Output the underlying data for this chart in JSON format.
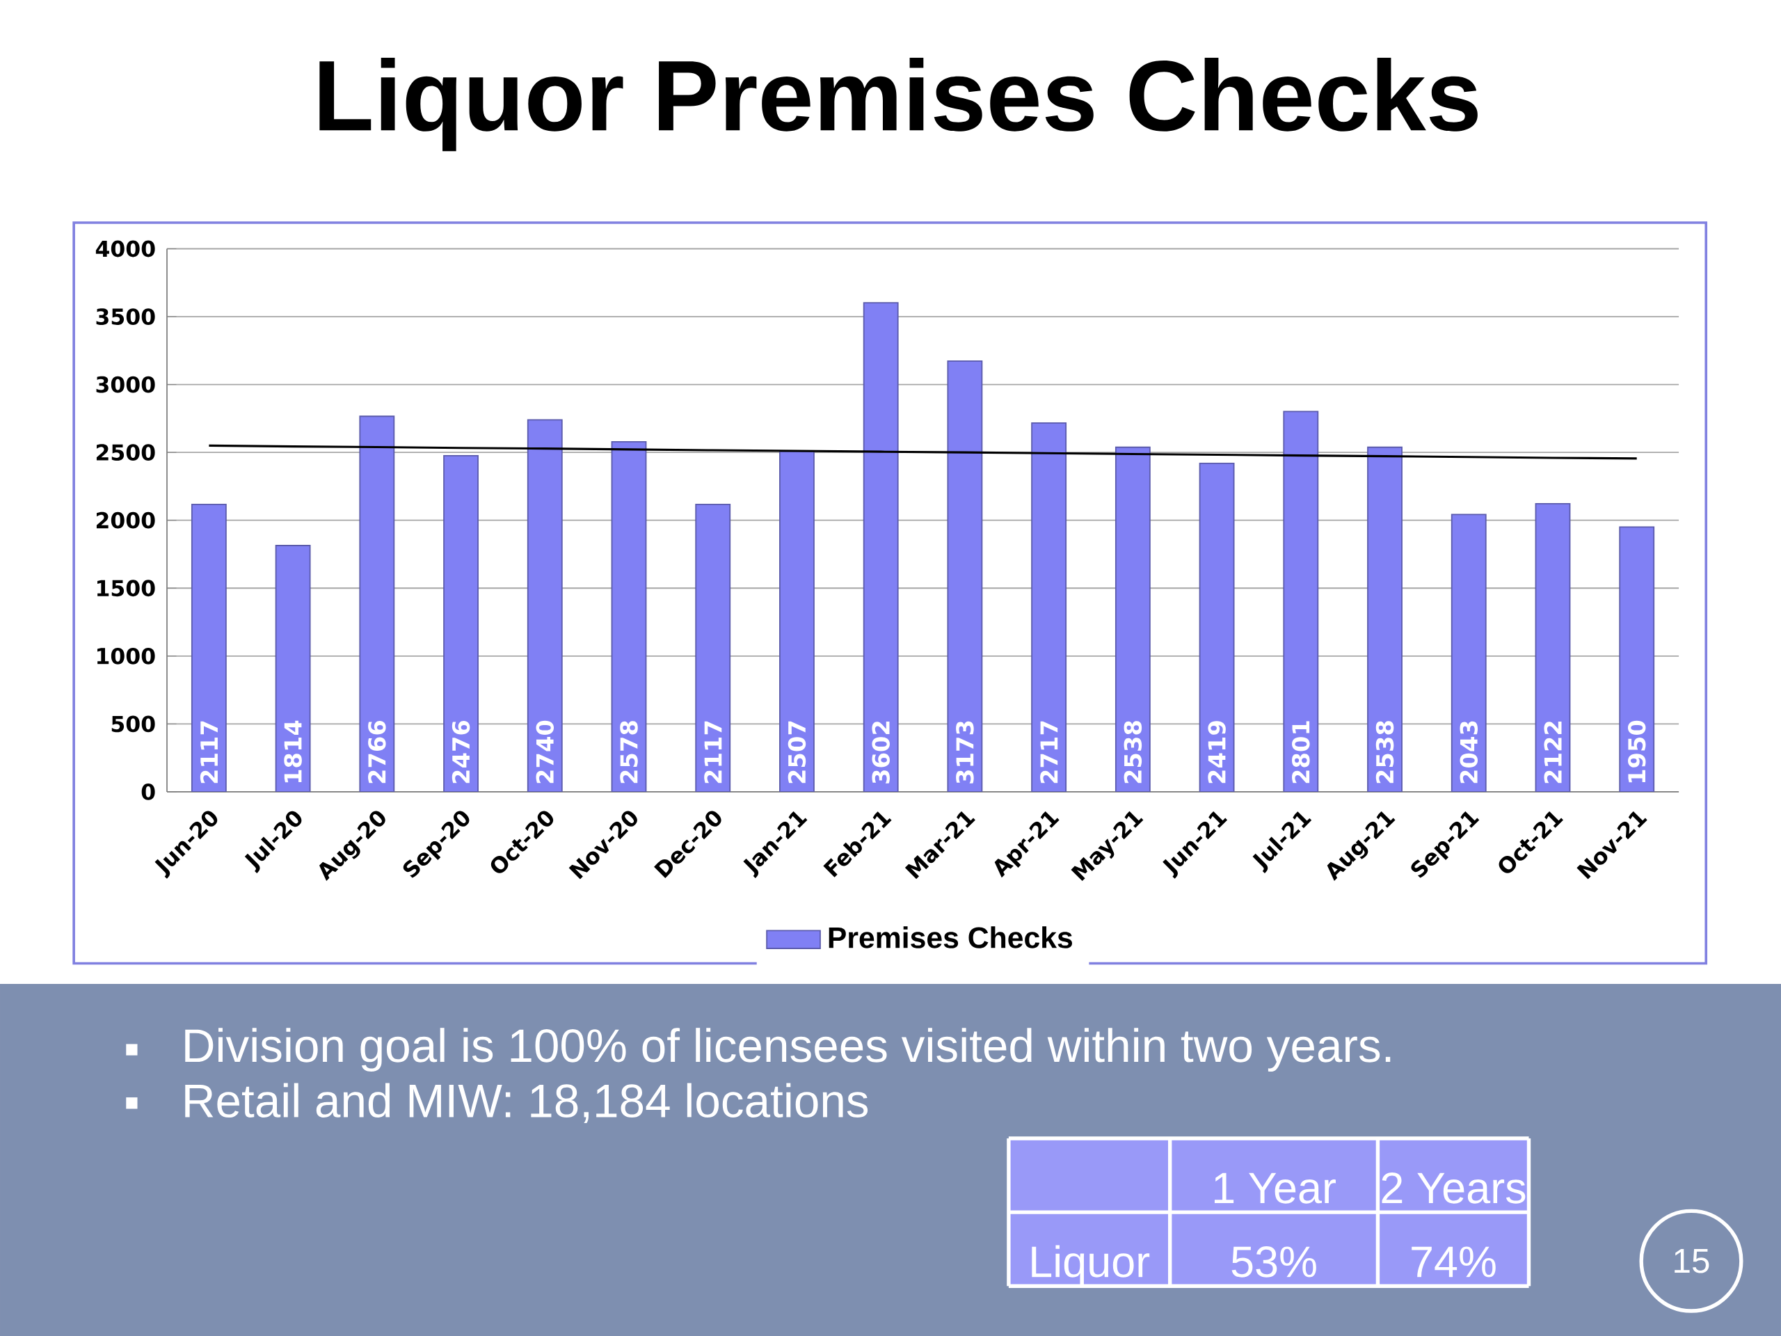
{
  "chart_data": {
    "type": "bar",
    "title": "Liquor Premises Checks",
    "categories": [
      "Jun-20",
      "Jul-20",
      "Aug-20",
      "Sep-20",
      "Oct-20",
      "Nov-20",
      "Dec-20",
      "Jan-21",
      "Feb-21",
      "Mar-21",
      "Apr-21",
      "May-21",
      "Jun-21",
      "Jul-21",
      "Aug-21",
      "Sep-21",
      "Oct-21",
      "Nov-21"
    ],
    "series": [
      {
        "name": "Premises Checks",
        "color": "#8080f4",
        "values": [
          2117,
          1814,
          2766,
          2476,
          2740,
          2578,
          2117,
          2507,
          3602,
          3173,
          2717,
          2538,
          2419,
          2801,
          2538,
          2043,
          2122,
          1950
        ],
        "value_labels": [
          "2117",
          "1814",
          "2766",
          "2476",
          "2740",
          "2578",
          "2117",
          "2507",
          "3602",
          "3173",
          "2717",
          "2538",
          "2419",
          "2801",
          "2538",
          "2043",
          "2122",
          "1950"
        ]
      },
      {
        "type": "line",
        "color": "#000000",
        "values": [
          2550,
          2544,
          2539,
          2533,
          2528,
          2522,
          2516,
          2511,
          2505,
          2500,
          2494,
          2488,
          2483,
          2477,
          2472,
          2466,
          2460,
          2455
        ]
      }
    ],
    "ylim": [
      0,
      4000
    ],
    "yticks": [
      0,
      500,
      1000,
      1500,
      2000,
      2500,
      3000,
      3500,
      4000
    ],
    "grid": "y",
    "legend": "bottom",
    "annotations": [
      "Division goal is 100% of licensees visited within two years.",
      "Retail and MIW: 18,184 locations",
      "1 Year",
      "2 Years",
      "Liquor",
      "53%",
      "74%",
      "15"
    ]
  }
}
